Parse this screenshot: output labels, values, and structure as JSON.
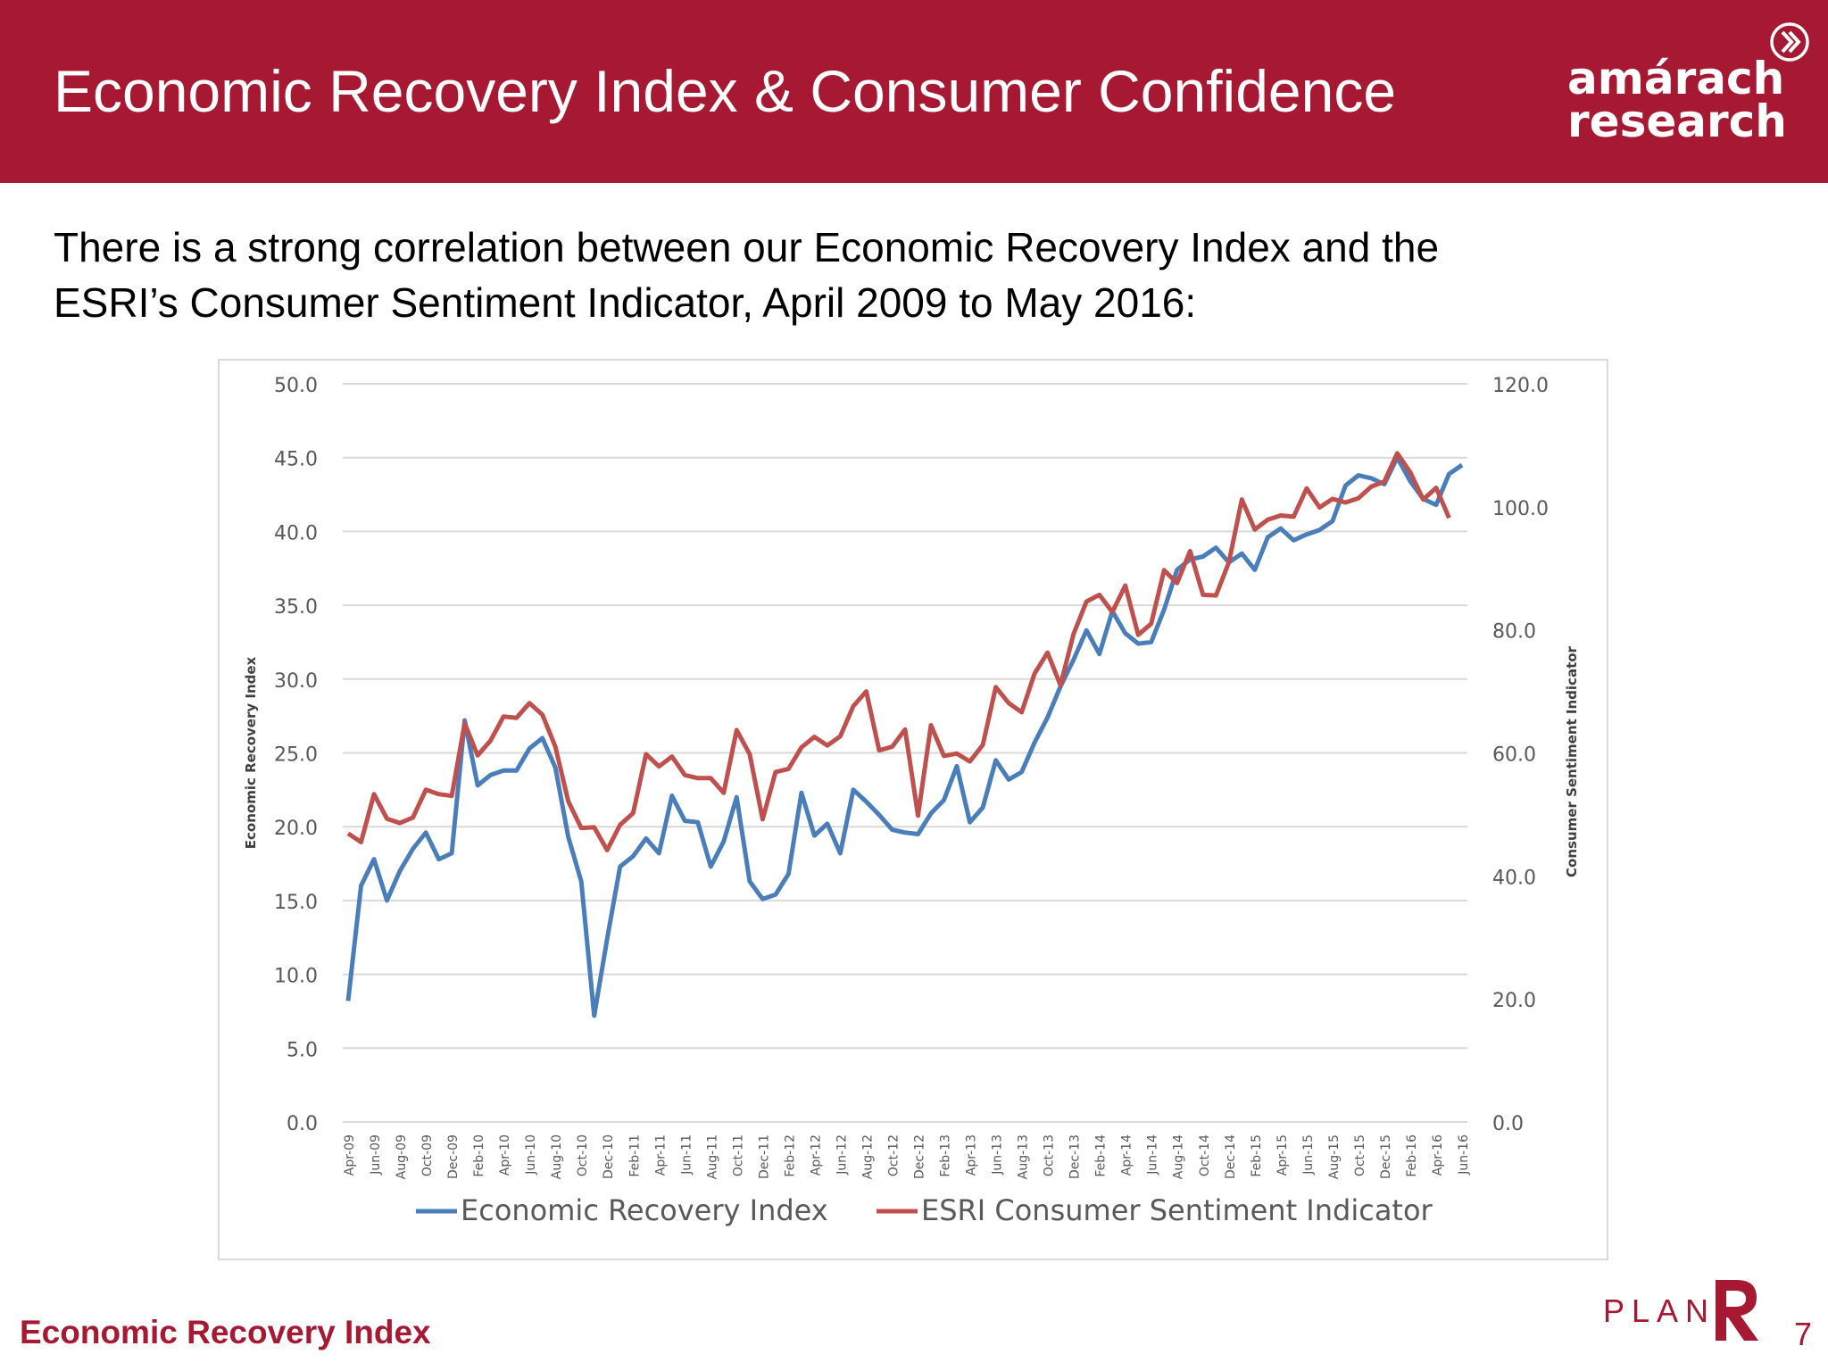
{
  "header": {
    "title": "Economic Recovery Index & Consumer Confidence"
  },
  "logo": {
    "line1": "amárach",
    "line2": "research"
  },
  "intro": {
    "line1": "There is a strong correlation between our Economic Recovery Index and the",
    "line2": "ESRI’s Consumer Sentiment Indicator, April 2009 to May 2016:"
  },
  "footer": {
    "label": "Economic Recovery Index",
    "plan": "PLAN",
    "page": "7"
  },
  "colors": {
    "brand": "#a71933",
    "eri": "#4a7ebb",
    "esri": "#c0504d"
  },
  "chart_data": {
    "type": "line",
    "title": "",
    "ylabel": "Economic Recovery Index",
    "y2label": "Consumer Sentiment Indicator",
    "ylim": [
      0,
      50
    ],
    "y2lim": [
      0,
      120
    ],
    "yticks": [
      "0.0",
      "5.0",
      "10.0",
      "15.0",
      "20.0",
      "25.0",
      "30.0",
      "35.0",
      "40.0",
      "45.0",
      "50.0"
    ],
    "y2ticks": [
      "0.0",
      "20.0",
      "40.0",
      "60.0",
      "80.0",
      "100.0",
      "120.0"
    ],
    "grid": true,
    "legend_position": "bottom",
    "x_tick_labels": [
      "Apr-09",
      "Jun-09",
      "Aug-09",
      "Oct-09",
      "Dec-09",
      "Feb-10",
      "Apr-10",
      "Jun-10",
      "Aug-10",
      "Oct-10",
      "Dec-10",
      "Feb-11",
      "Apr-11",
      "Jun-11",
      "Aug-11",
      "Oct-11",
      "Dec-11",
      "Feb-12",
      "Apr-12",
      "Jun-12",
      "Aug-12",
      "Oct-12",
      "Dec-12",
      "Feb-13",
      "Apr-13",
      "Jun-13",
      "Aug-13",
      "Oct-13",
      "Dec-13",
      "Feb-14",
      "Apr-14",
      "Jun-14",
      "Aug-14",
      "Oct-14",
      "Dec-14",
      "Feb-15",
      "Apr-15",
      "Jun-15",
      "Aug-15",
      "Oct-15",
      "Dec-15",
      "Feb-16",
      "Apr-16",
      "Jun-16"
    ],
    "series": [
      {
        "name": "Economic Recovery Index",
        "axis": "left",
        "color": "#4a7ebb",
        "values": [
          8.2,
          16.0,
          17.8,
          15.0,
          17.0,
          18.5,
          19.6,
          17.8,
          18.2,
          27.2,
          22.8,
          23.5,
          23.8,
          23.8,
          25.3,
          26.0,
          24.0,
          19.3,
          16.3,
          7.2,
          12.4,
          17.3,
          18.0,
          19.2,
          18.2,
          22.1,
          20.4,
          20.3,
          17.3,
          19.0,
          22.0,
          16.3,
          15.1,
          15.4,
          16.8,
          22.3,
          19.4,
          20.2,
          18.2,
          22.5,
          21.7,
          20.8,
          19.8,
          19.6,
          19.5,
          20.9,
          21.8,
          24.1,
          20.3,
          21.3,
          24.5,
          23.2,
          23.7,
          25.7,
          27.4,
          29.5,
          31.3,
          33.3,
          31.7,
          34.6,
          33.1,
          32.4,
          32.5,
          34.7,
          37.4,
          38.1,
          38.3,
          38.9,
          37.9,
          38.5,
          37.4,
          39.6,
          40.2,
          39.4,
          39.8,
          40.1,
          40.7,
          43.1,
          43.8,
          43.6,
          43.2,
          45.0,
          43.4,
          42.2,
          41.8,
          43.9,
          44.5
        ]
      },
      {
        "name": "ESRI Consumer Sentiment Indicator",
        "axis": "right",
        "color": "#c0504d",
        "values": [
          46.9,
          45.5,
          53.3,
          49.3,
          48.6,
          49.5,
          54.0,
          53.3,
          53.0,
          64.8,
          59.6,
          62.0,
          65.9,
          65.7,
          68.1,
          66.2,
          61.0,
          52.1,
          47.8,
          47.9,
          44.2,
          48.3,
          50.2,
          59.8,
          57.8,
          59.4,
          56.4,
          55.9,
          55.9,
          53.5,
          63.7,
          59.8,
          49.2,
          56.9,
          57.4,
          60.9,
          62.6,
          61.2,
          62.7,
          67.6,
          70.0,
          60.4,
          61.0,
          63.8,
          49.8,
          64.5,
          59.5,
          59.9,
          58.6,
          61.3,
          70.7,
          68.1,
          66.6,
          72.9,
          76.3,
          71.0,
          79.3,
          84.6,
          85.7,
          82.9,
          87.2,
          79.2,
          81.0,
          89.7,
          87.6,
          92.8,
          85.7,
          85.6,
          91.0,
          101.2,
          96.3,
          97.9,
          98.6,
          98.4,
          103.0,
          99.9,
          101.3,
          100.7,
          101.4,
          103.3,
          104.1,
          108.7,
          105.6,
          101.2,
          103.1,
          98.2
        ]
      }
    ]
  }
}
